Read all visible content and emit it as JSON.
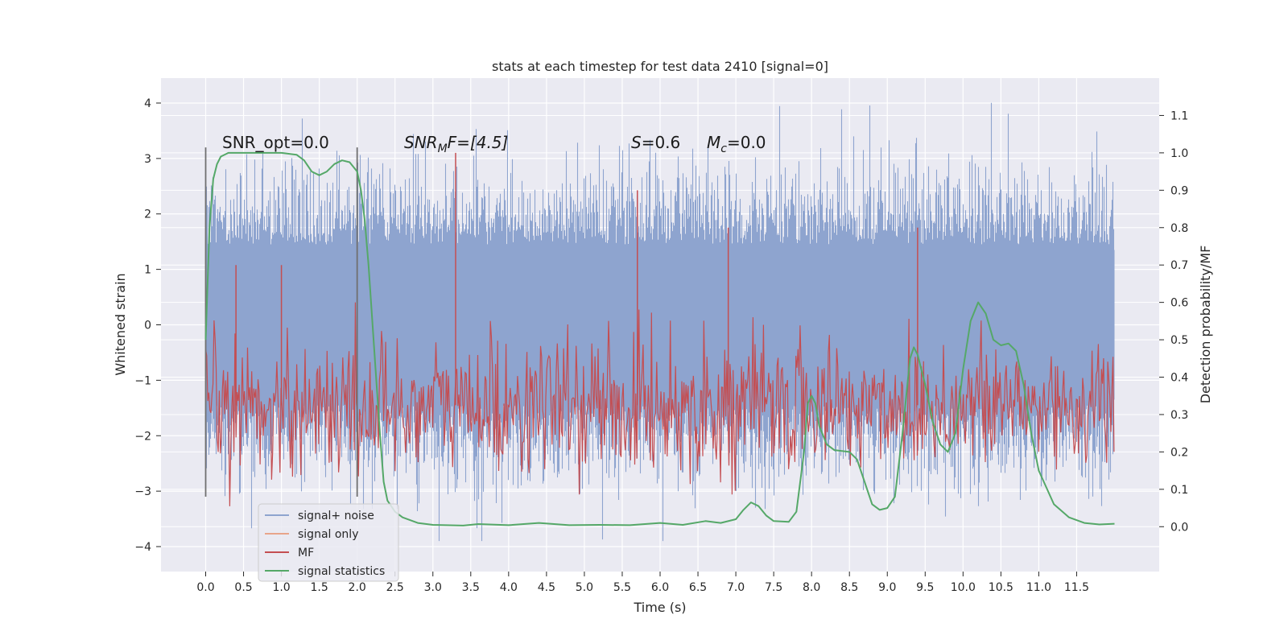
{
  "chart_data": {
    "type": "line",
    "title": "stats at each timestep for test data 2410 [signal=0]",
    "xlabel": "Time (s)",
    "ylabel": "Whitened strain",
    "y2label": "Detection probability/MF",
    "xlim": [
      -0.59,
      12.59
    ],
    "ylim": [
      -4.45,
      4.45
    ],
    "y2lim": [
      -0.12,
      1.2
    ],
    "x_ticks": [
      "0.0",
      "0.5",
      "1.0",
      "1.5",
      "2.0",
      "2.5",
      "3.0",
      "3.5",
      "4.0",
      "4.5",
      "5.0",
      "5.5",
      "6.0",
      "6.5",
      "7.0",
      "7.5",
      "8.0",
      "8.5",
      "9.0",
      "9.5",
      "10.0",
      "10.5",
      "11.0",
      "11.5"
    ],
    "y_ticks": [
      "4",
      "3",
      "2",
      "1",
      "0",
      "−1",
      "−2",
      "−3",
      "−4"
    ],
    "y2_ticks": [
      "1.1",
      "1.0",
      "0.9",
      "0.8",
      "0.7",
      "0.6",
      "0.5",
      "0.4",
      "0.3",
      "0.2",
      "0.1",
      "0.0"
    ],
    "grid": true,
    "legend_position": "lower-left",
    "annotations": {
      "snr_opt": "SNR_opt=0.0",
      "snr_mf_italic": "SNR",
      "snr_mf_sub": "M",
      "snr_mf_rest": "F=[4.5]",
      "s_italic": "S",
      "s_rest": "=0.6",
      "mc_italic": "M",
      "mc_sub": "c",
      "mc_rest": "=0.0"
    },
    "vertical_lines_x": [
      0.0,
      2.0
    ],
    "series": [
      {
        "name": "signal+ noise",
        "color": "#8ea4cf",
        "description_range": [
          -3.9,
          4.1
        ],
        "x_range": [
          0.0,
          12.0
        ]
      },
      {
        "name": "signal only",
        "color": "#e8a58a",
        "x_range": [
          0.0,
          12.0
        ],
        "values_constant": 0.0
      },
      {
        "name": "MF",
        "color": "#c44e52",
        "x_range": [
          0.0,
          12.0
        ],
        "typical_range": [
          0.05,
          0.6
        ],
        "peaks": [
          [
            0.4,
            0.7
          ],
          [
            1.0,
            0.7
          ],
          [
            3.3,
            1.0
          ],
          [
            5.7,
            0.9
          ],
          [
            6.9,
            0.8
          ],
          [
            9.4,
            0.8
          ]
        ]
      },
      {
        "name": "signal statistics",
        "color": "#55a868",
        "axis": "right",
        "points": [
          [
            0.0,
            0.5
          ],
          [
            0.05,
            0.8
          ],
          [
            0.1,
            0.93
          ],
          [
            0.15,
            0.97
          ],
          [
            0.2,
            0.99
          ],
          [
            0.3,
            1.0
          ],
          [
            0.5,
            1.0
          ],
          [
            0.8,
            1.0
          ],
          [
            1.0,
            1.0
          ],
          [
            1.2,
            0.995
          ],
          [
            1.3,
            0.98
          ],
          [
            1.4,
            0.95
          ],
          [
            1.5,
            0.94
          ],
          [
            1.6,
            0.95
          ],
          [
            1.7,
            0.97
          ],
          [
            1.8,
            0.98
          ],
          [
            1.9,
            0.975
          ],
          [
            2.0,
            0.95
          ],
          [
            2.05,
            0.9
          ],
          [
            2.1,
            0.82
          ],
          [
            2.15,
            0.7
          ],
          [
            2.2,
            0.55
          ],
          [
            2.25,
            0.4
          ],
          [
            2.3,
            0.25
          ],
          [
            2.35,
            0.12
          ],
          [
            2.4,
            0.07
          ],
          [
            2.5,
            0.04
          ],
          [
            2.6,
            0.025
          ],
          [
            2.8,
            0.01
          ],
          [
            3.0,
            0.005
          ],
          [
            3.4,
            0.003
          ],
          [
            3.6,
            0.007
          ],
          [
            4.0,
            0.004
          ],
          [
            4.4,
            0.01
          ],
          [
            4.8,
            0.004
          ],
          [
            5.2,
            0.005
          ],
          [
            5.6,
            0.004
          ],
          [
            6.0,
            0.01
          ],
          [
            6.3,
            0.005
          ],
          [
            6.6,
            0.015
          ],
          [
            6.8,
            0.01
          ],
          [
            7.0,
            0.02
          ],
          [
            7.1,
            0.045
          ],
          [
            7.2,
            0.065
          ],
          [
            7.3,
            0.055
          ],
          [
            7.4,
            0.03
          ],
          [
            7.5,
            0.015
          ],
          [
            7.7,
            0.013
          ],
          [
            7.8,
            0.04
          ],
          [
            7.9,
            0.2
          ],
          [
            7.95,
            0.33
          ],
          [
            8.0,
            0.35
          ],
          [
            8.05,
            0.33
          ],
          [
            8.1,
            0.27
          ],
          [
            8.2,
            0.22
          ],
          [
            8.3,
            0.205
          ],
          [
            8.5,
            0.2
          ],
          [
            8.6,
            0.18
          ],
          [
            8.7,
            0.12
          ],
          [
            8.8,
            0.06
          ],
          [
            8.9,
            0.045
          ],
          [
            9.0,
            0.05
          ],
          [
            9.1,
            0.08
          ],
          [
            9.2,
            0.25
          ],
          [
            9.3,
            0.45
          ],
          [
            9.35,
            0.48
          ],
          [
            9.4,
            0.46
          ],
          [
            9.5,
            0.38
          ],
          [
            9.6,
            0.28
          ],
          [
            9.7,
            0.22
          ],
          [
            9.8,
            0.2
          ],
          [
            9.9,
            0.25
          ],
          [
            10.0,
            0.42
          ],
          [
            10.1,
            0.55
          ],
          [
            10.2,
            0.6
          ],
          [
            10.3,
            0.57
          ],
          [
            10.4,
            0.5
          ],
          [
            10.5,
            0.485
          ],
          [
            10.6,
            0.49
          ],
          [
            10.7,
            0.47
          ],
          [
            10.8,
            0.38
          ],
          [
            10.9,
            0.25
          ],
          [
            11.0,
            0.15
          ],
          [
            11.2,
            0.06
          ],
          [
            11.4,
            0.025
          ],
          [
            11.6,
            0.01
          ],
          [
            11.8,
            0.006
          ],
          [
            12.0,
            0.008
          ]
        ]
      }
    ]
  }
}
